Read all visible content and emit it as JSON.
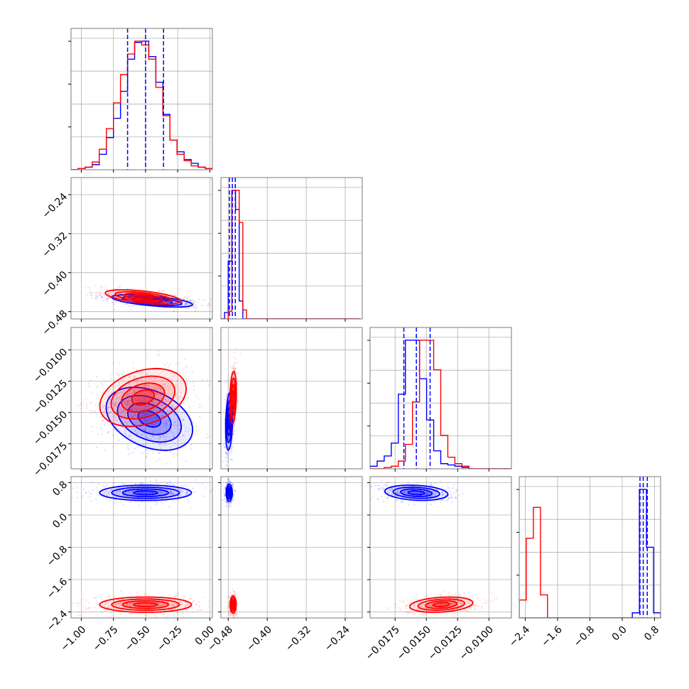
{
  "colors": {
    "blue": "#0000ff",
    "red": "#ff0000",
    "grid": "#b0b0b0",
    "frame": "#7a7a7a"
  },
  "chart_data": {
    "type": "corner",
    "grid": true,
    "series": [
      {
        "color": "#0000ff"
      },
      {
        "color": "#ff0000"
      }
    ],
    "parameters": [
      {
        "range": [
          -1.08,
          0.02
        ],
        "ticks": [
          -1.0,
          -0.75,
          -0.5,
          -0.25,
          0.0
        ],
        "tick_labels": [
          "−1.00",
          "−0.75",
          "−0.50",
          "−0.25",
          "0.00"
        ]
      },
      {
        "range": [
          -0.495,
          -0.205
        ],
        "ticks": [
          -0.48,
          -0.4,
          -0.32,
          -0.24
        ],
        "tick_labels": [
          "−0.48",
          "−0.40",
          "−0.32",
          "−0.24"
        ]
      },
      {
        "range": [
          -0.0195,
          -0.0082
        ],
        "ticks": [
          -0.0175,
          -0.015,
          -0.0125,
          -0.01
        ],
        "tick_labels": [
          "−0.0175",
          "−0.0150",
          "−0.0125",
          "−0.0100"
        ]
      },
      {
        "range": [
          -2.55,
          0.95
        ],
        "ticks": [
          -2.4,
          -1.6,
          -0.8,
          0.0,
          0.8
        ],
        "tick_labels": [
          "−2.4",
          "−1.6",
          "−0.8",
          "0.0",
          "0.8"
        ]
      }
    ],
    "histograms": [
      {
        "param": 0,
        "bins": {
          "start": -1.08,
          "width": 0.055,
          "count": 20
        },
        "blue": [
          0,
          1,
          2,
          4,
          12,
          25,
          40,
          61,
          86,
          99,
          100,
          88,
          68,
          43,
          23,
          14,
          8,
          5,
          2,
          1
        ],
        "red": [
          0,
          1,
          2,
          6,
          16,
          32,
          52,
          74,
          90,
          100,
          97,
          86,
          64,
          42,
          23,
          12,
          7,
          3,
          2,
          1
        ],
        "quantiles": [
          -0.64,
          -0.5,
          -0.36
        ]
      },
      {
        "param": 1,
        "bins": {
          "start": -0.495,
          "width": 0.0075,
          "count": 38
        },
        "blue": [
          0,
          5,
          45,
          100,
          85,
          14,
          0,
          0,
          0,
          0,
          0,
          0,
          0,
          0,
          0,
          0,
          0,
          0,
          0,
          0,
          0,
          0,
          0,
          0,
          0,
          0,
          0,
          0,
          0,
          0,
          0,
          0,
          0,
          0,
          0,
          0,
          0,
          0
        ],
        "red": [
          0,
          0,
          6,
          100,
          100,
          75,
          7,
          0,
          0,
          0,
          0,
          0,
          0,
          0,
          0,
          0,
          0,
          0,
          0,
          0,
          0,
          0,
          0,
          0,
          0,
          0,
          0,
          0,
          0,
          0,
          0,
          0,
          0,
          0,
          0,
          0,
          0,
          0
        ],
        "quantiles": [
          -0.4775,
          -0.4715,
          -0.4655
        ]
      },
      {
        "param": 2,
        "bins": {
          "start": -0.0195,
          "width": 0.000565,
          "count": 20
        },
        "blue": [
          2,
          6,
          10,
          20,
          58,
          100,
          100,
          70,
          38,
          14,
          4,
          3,
          2,
          1,
          0,
          0,
          0,
          0,
          0,
          0
        ],
        "red": [
          0,
          0,
          1,
          2,
          6,
          19,
          52,
          100,
          100,
          77,
          26,
          9,
          4,
          2,
          0,
          0,
          0,
          0,
          0,
          0
        ],
        "quantiles": [
          -0.0168,
          -0.0158,
          -0.0147
        ]
      },
      {
        "param": 3,
        "bins": {
          "start": -2.55,
          "width": 0.175,
          "count": 20
        },
        "blue": [
          0,
          0,
          0,
          0,
          0,
          0,
          0,
          0,
          0,
          0,
          0,
          0,
          0,
          0,
          0,
          0,
          4,
          100,
          55,
          4
        ],
        "red": [
          14,
          62,
          86,
          18,
          0,
          0,
          0,
          0,
          0,
          0,
          0,
          0,
          0,
          0,
          0,
          0,
          0,
          0,
          0,
          0
        ],
        "quantiles": [
          0.44,
          0.52,
          0.62
        ]
      }
    ],
    "pairs": [
      {
        "x": 0,
        "y": 1,
        "blue": {
          "mean": [
            -0.45,
            -0.458
          ],
          "sd": [
            0.15,
            0.006
          ],
          "rho": -0.6
        },
        "red": {
          "mean": [
            -0.52,
            -0.45
          ],
          "sd": [
            0.14,
            0.007
          ],
          "rho": -0.55
        }
      },
      {
        "x": 0,
        "y": 2,
        "blue": {
          "mean": [
            -0.47,
            -0.0155
          ],
          "sd": [
            0.16,
            0.0012
          ],
          "rho": -0.35
        },
        "red": {
          "mean": [
            -0.52,
            -0.0138
          ],
          "sd": [
            0.16,
            0.0011
          ],
          "rho": 0.3
        }
      },
      {
        "x": 1,
        "y": 2,
        "blue": {
          "mean": [
            -0.478,
            -0.0157
          ],
          "sd": [
            0.0035,
            0.0011
          ],
          "rho": 0.25
        },
        "red": {
          "mean": [
            -0.47,
            -0.0138
          ],
          "sd": [
            0.0032,
            0.001
          ],
          "rho": 0.2
        }
      },
      {
        "x": 0,
        "y": 3,
        "blue": {
          "mean": [
            -0.5,
            0.55
          ],
          "sd": [
            0.17,
            0.09
          ],
          "rho": 0.0
        },
        "red": {
          "mean": [
            -0.5,
            -2.22
          ],
          "sd": [
            0.17,
            0.09
          ],
          "rho": 0.0
        }
      },
      {
        "x": 1,
        "y": 3,
        "blue": {
          "mean": [
            -0.478,
            0.55
          ],
          "sd": [
            0.003,
            0.1
          ],
          "rho": 0.0
        },
        "red": {
          "mean": [
            -0.47,
            -2.22
          ],
          "sd": [
            0.003,
            0.1
          ],
          "rho": 0.0
        }
      },
      {
        "x": 2,
        "y": 3,
        "blue": {
          "mean": [
            -0.0158,
            0.55
          ],
          "sd": [
            0.0012,
            0.09
          ],
          "rho": -0.2
        },
        "red": {
          "mean": [
            -0.0138,
            -2.22
          ],
          "sd": [
            0.0012,
            0.09
          ],
          "rho": 0.25
        }
      }
    ]
  }
}
